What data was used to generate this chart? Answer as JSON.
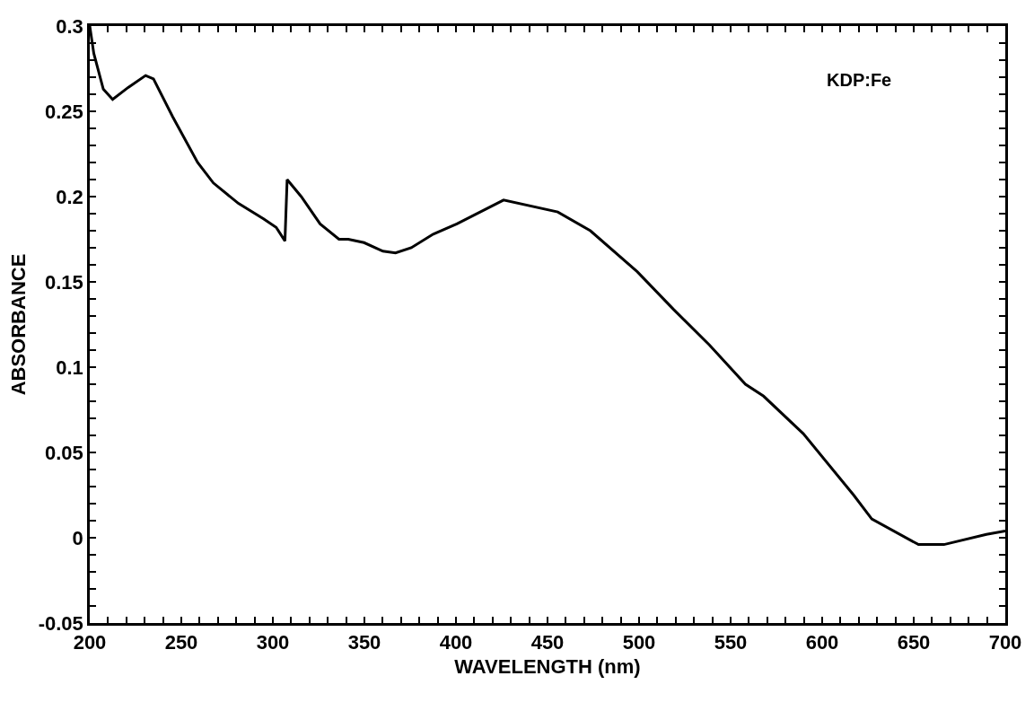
{
  "chart_data": {
    "type": "line",
    "xlabel": "WAVELENGTH (nm)",
    "ylabel": "ABSORBANCE",
    "annotations": [
      "KDP:Fe"
    ],
    "x": [
      200,
      202.2,
      207.4,
      212.5,
      221,
      230.5,
      234.8,
      245.2,
      258.9,
      267.5,
      281.2,
      294.9,
      301.8,
      306.6,
      307.8,
      315.5,
      325.8,
      336.1,
      341.2,
      349.8,
      360.1,
      367,
      375.6,
      387.6,
      400.5,
      426,
      455.6,
      473.4,
      499,
      518.7,
      538.4,
      558.1,
      568,
      589.7,
      617.2,
      627.1,
      652.6,
      666.5,
      689.7,
      700
    ],
    "series": [
      {
        "color": "#000000",
        "values": [
          0.3,
          0.284,
          0.263,
          0.257,
          0.264,
          0.271,
          0.269,
          0.247,
          0.22,
          0.208,
          0.196,
          0.187,
          0.182,
          0.174,
          0.21,
          0.2,
          0.184,
          0.175,
          0.175,
          0.173,
          0.168,
          0.167,
          0.17,
          0.178,
          0.184,
          0.198,
          0.191,
          0.18,
          0.156,
          0.134,
          0.113,
          0.09,
          0.083,
          0.061,
          0.025,
          0.011,
          -0.004,
          -0.004,
          0.002,
          0.004
        ]
      }
    ],
    "xlim": [
      200,
      700
    ],
    "ylim": [
      -0.05,
      0.3
    ],
    "xticks": [
      200,
      {
        "value": 210,
        "label": null
      },
      {
        "value": 220,
        "label": null
      },
      {
        "value": 230,
        "label": null
      },
      {
        "value": 240,
        "label": null
      },
      250,
      {
        "value": 260,
        "label": null
      },
      {
        "value": 270,
        "label": null
      },
      {
        "value": 280,
        "label": null
      },
      {
        "value": 290,
        "label": null
      },
      300,
      {
        "value": 310,
        "label": null
      },
      {
        "value": 320,
        "label": null
      },
      {
        "value": 330,
        "label": null
      },
      {
        "value": 340,
        "label": null
      },
      350,
      {
        "value": 360,
        "label": null
      },
      {
        "value": 370,
        "label": null
      },
      {
        "value": 380,
        "label": null
      },
      {
        "value": 390,
        "label": null
      },
      400,
      {
        "value": 410,
        "label": null
      },
      {
        "value": 420,
        "label": null
      },
      {
        "value": 430,
        "label": null
      },
      {
        "value": 440,
        "label": null
      },
      450,
      {
        "value": 460,
        "label": null
      },
      {
        "value": 470,
        "label": null
      },
      {
        "value": 480,
        "label": null
      },
      {
        "value": 490,
        "label": null
      },
      500,
      {
        "value": 510,
        "label": null
      },
      {
        "value": 520,
        "label": null
      },
      {
        "value": 530,
        "label": null
      },
      {
        "value": 540,
        "label": null
      },
      550,
      {
        "value": 560,
        "label": null
      },
      {
        "value": 570,
        "label": null
      },
      {
        "value": 580,
        "label": null
      },
      {
        "value": 590,
        "label": null
      },
      600,
      {
        "value": 610,
        "label": null
      },
      {
        "value": 620,
        "label": null
      },
      {
        "value": 630,
        "label": null
      },
      {
        "value": 640,
        "label": null
      },
      650,
      {
        "value": 660,
        "label": null
      },
      {
        "value": 670,
        "label": null
      },
      {
        "value": 680,
        "label": null
      },
      {
        "value": 690,
        "label": null
      },
      700
    ],
    "yticks": [
      -0.05,
      {
        "value": -0.04,
        "label": null
      },
      {
        "value": -0.03,
        "label": null
      },
      {
        "value": -0.02,
        "label": null
      },
      {
        "value": -0.01,
        "label": null
      },
      0,
      {
        "value": 0.01,
        "label": null
      },
      {
        "value": 0.02,
        "label": null
      },
      {
        "value": 0.03,
        "label": null
      },
      {
        "value": 0.04,
        "label": null
      },
      0.05,
      {
        "value": 0.06,
        "label": null
      },
      {
        "value": 0.07,
        "label": null
      },
      {
        "value": 0.08,
        "label": null
      },
      {
        "value": 0.09,
        "label": null
      },
      0.1,
      {
        "value": 0.11,
        "label": null
      },
      {
        "value": 0.12,
        "label": null
      },
      {
        "value": 0.13,
        "label": null
      },
      {
        "value": 0.14,
        "label": null
      },
      0.15,
      {
        "value": 0.16,
        "label": null
      },
      {
        "value": 0.17,
        "label": null
      },
      {
        "value": 0.18,
        "label": null
      },
      {
        "value": 0.19,
        "label": null
      },
      0.2,
      {
        "value": 0.21,
        "label": null
      },
      {
        "value": 0.22,
        "label": null
      },
      {
        "value": 0.23,
        "label": null
      },
      {
        "value": 0.24,
        "label": null
      },
      0.25,
      {
        "value": 0.26,
        "label": null
      },
      {
        "value": 0.27,
        "label": null
      },
      {
        "value": 0.28,
        "label": null
      },
      {
        "value": 0.29,
        "label": null
      },
      0.3
    ],
    "grid": false,
    "line_style": "solid",
    "marker": "none"
  }
}
